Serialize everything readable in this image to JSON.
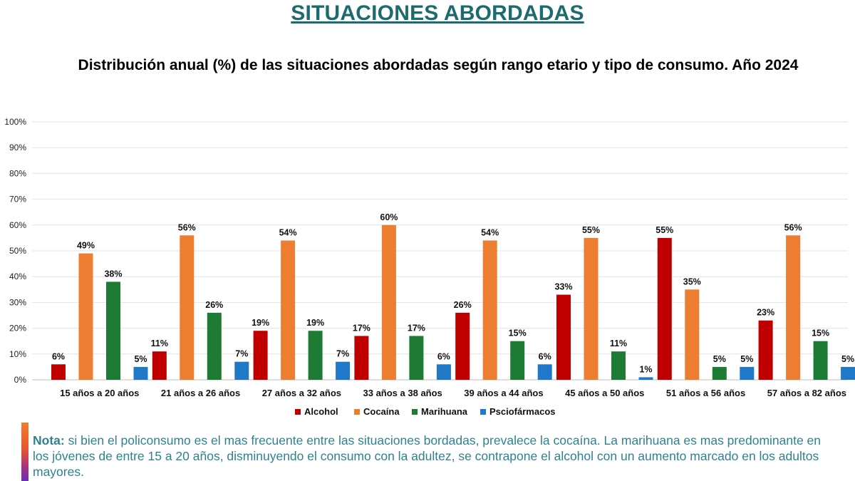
{
  "header": {
    "title": "SITUACIONES ABORDADAS",
    "subtitle": "Distribución anual (%) de las situaciones abordadas según rango etario y tipo de consumo. Año 2024"
  },
  "note": {
    "label": "Nota:",
    "text": " si bien el policonsumo es el mas frecuente entre  las situaciones bordadas, prevalece la cocaína. La marihuana es mas predominante en los jóvenes de entre 15 a 20 años, disminuyendo el consumo con la adultez, se contrapone el alcohol con un aumento marcado en los adultos mayores."
  },
  "chart_data": {
    "type": "bar",
    "title": "Distribución anual (%) de las situaciones abordadas según rango etario y tipo de consumo. Año 2024",
    "xlabel": "",
    "ylabel": "",
    "ylim": [
      0,
      100
    ],
    "yticks": [
      "0%",
      "10%",
      "20%",
      "30%",
      "40%",
      "50%",
      "60%",
      "70%",
      "80%",
      "90%",
      "100%"
    ],
    "grid": true,
    "legend_position": "bottom",
    "categories": [
      "15 años a 20 años",
      "21 años a 26 años",
      "27 años a 32 años",
      "33 años a 38 años",
      "39 años a 44 años",
      "45 años a 50 años",
      "51 años a 56 años",
      "57 años a 82 años"
    ],
    "series": [
      {
        "name": "Alcohol",
        "color": "#c00000",
        "values": [
          6,
          11,
          19,
          17,
          26,
          33,
          55,
          23
        ],
        "labels": [
          "6%",
          "11%",
          "19%",
          "17%",
          "26%",
          "33%",
          "55%",
          "23%"
        ]
      },
      {
        "name": "Cocaína",
        "color": "#ed7d31",
        "values": [
          49,
          56,
          54,
          60,
          54,
          55,
          35,
          56
        ],
        "labels": [
          "49%",
          "56%",
          "54%",
          "60%",
          "54%",
          "55%",
          "35%",
          "56%"
        ]
      },
      {
        "name": "Marihuana",
        "color": "#1e7b34",
        "values": [
          38,
          26,
          19,
          17,
          15,
          11,
          5,
          15
        ],
        "labels": [
          "38%",
          "26%",
          "19%",
          "17%",
          "15%",
          "11%",
          "5%",
          "15%"
        ]
      },
      {
        "name": "Psciofármacos",
        "color": "#1f78c8",
        "values": [
          5,
          7,
          7,
          6,
          6,
          1,
          5,
          5
        ],
        "labels": [
          "5%",
          "7%",
          "7%",
          "6%",
          "6%",
          "1%",
          "5%",
          "5%"
        ]
      }
    ]
  }
}
